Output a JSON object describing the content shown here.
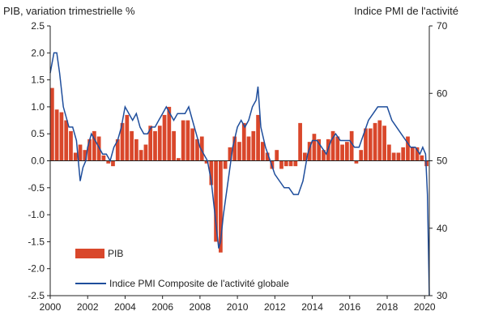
{
  "chart_data": {
    "type": "bar+line",
    "left_axis_title": "PIB, variation trimestrielle  %",
    "right_axis_title": "Indice PMI de l'activité",
    "x_ticks": [
      "2000",
      "2002",
      "2004",
      "2006",
      "2008",
      "2010",
      "2012",
      "2014",
      "2016",
      "2018",
      "2020"
    ],
    "left_ticks": [
      "2.5",
      "2.0",
      "1.5",
      "1.0",
      "0.5",
      "0.0",
      "-0.5",
      "-1.0",
      "-1.5",
      "-2.0",
      "-2.5"
    ],
    "right_ticks": [
      "70",
      "60",
      "50",
      "40",
      "30"
    ],
    "left_range": [
      -2.5,
      2.5
    ],
    "right_range": [
      30,
      70
    ],
    "x_range": [
      2000.0,
      2020.25
    ],
    "colors": {
      "bar": "#d9472b",
      "line": "#1f4e9c"
    },
    "series": [
      {
        "name": "PIB",
        "kind": "bar",
        "axis": "left",
        "x": [
          2000.0,
          2000.25,
          2000.5,
          2000.75,
          2001.0,
          2001.25,
          2001.5,
          2001.75,
          2002.0,
          2002.25,
          2002.5,
          2002.75,
          2003.0,
          2003.25,
          2003.5,
          2003.75,
          2004.0,
          2004.25,
          2004.5,
          2004.75,
          2005.0,
          2005.25,
          2005.5,
          2005.75,
          2006.0,
          2006.25,
          2006.5,
          2006.75,
          2007.0,
          2007.25,
          2007.5,
          2007.75,
          2008.0,
          2008.25,
          2008.5,
          2008.75,
          2009.0,
          2009.25,
          2009.5,
          2009.75,
          2010.0,
          2010.25,
          2010.5,
          2010.75,
          2011.0,
          2011.25,
          2011.5,
          2011.75,
          2012.0,
          2012.25,
          2012.5,
          2012.75,
          2013.0,
          2013.25,
          2013.5,
          2013.75,
          2014.0,
          2014.25,
          2014.5,
          2014.75,
          2015.0,
          2015.25,
          2015.5,
          2015.75,
          2016.0,
          2016.25,
          2016.5,
          2016.75,
          2017.0,
          2017.25,
          2017.5,
          2017.75,
          2018.0,
          2018.25,
          2018.5,
          2018.75,
          2019.0,
          2019.25,
          2019.5,
          2019.75,
          2020.0
        ],
        "values": [
          1.35,
          0.95,
          0.9,
          0.75,
          0.55,
          0.15,
          0.3,
          0.2,
          0.4,
          0.55,
          0.45,
          0.1,
          -0.05,
          -0.1,
          0.4,
          0.7,
          0.85,
          0.55,
          0.4,
          0.2,
          0.3,
          0.65,
          0.55,
          0.65,
          0.85,
          1.0,
          0.55,
          0.05,
          0.75,
          0.75,
          0.6,
          0.4,
          0.45,
          -0.05,
          -0.45,
          -1.5,
          -1.7,
          -0.15,
          0.25,
          0.45,
          0.35,
          0.7,
          0.45,
          0.55,
          0.85,
          0.35,
          0.15,
          -0.15,
          0.2,
          -0.15,
          -0.1,
          -0.1,
          -0.1,
          0.7,
          0.15,
          0.35,
          0.5,
          0.4,
          0.2,
          0.4,
          0.55,
          0.45,
          0.3,
          0.35,
          0.55,
          -0.05,
          0.2,
          0.6,
          0.6,
          0.7,
          0.75,
          0.65,
          0.3,
          0.15,
          0.15,
          0.25,
          0.45,
          0.25,
          0.25,
          0.1,
          -0.1
        ]
      },
      {
        "name": "Indice PMI Composite de l'activité globale",
        "kind": "line",
        "axis": "right",
        "x": [
          2000.0,
          2000.2,
          2000.35,
          2000.5,
          2000.7,
          2001.0,
          2001.2,
          2001.4,
          2001.6,
          2001.75,
          2001.9,
          2002.0,
          2002.2,
          2002.4,
          2002.6,
          2002.8,
          2003.0,
          2003.2,
          2003.4,
          2003.6,
          2003.8,
          2004.0,
          2004.2,
          2004.4,
          2004.6,
          2004.8,
          2005.0,
          2005.2,
          2005.4,
          2005.6,
          2005.8,
          2006.0,
          2006.2,
          2006.4,
          2006.6,
          2006.8,
          2007.0,
          2007.2,
          2007.4,
          2007.6,
          2007.8,
          2008.0,
          2008.2,
          2008.4,
          2008.6,
          2008.8,
          2009.0,
          2009.1,
          2009.25,
          2009.5,
          2009.75,
          2010.0,
          2010.2,
          2010.4,
          2010.6,
          2010.8,
          2011.0,
          2011.1,
          2011.25,
          2011.5,
          2011.75,
          2012.0,
          2012.25,
          2012.5,
          2012.75,
          2013.0,
          2013.25,
          2013.5,
          2013.75,
          2014.0,
          2014.25,
          2014.5,
          2014.75,
          2015.0,
          2015.25,
          2015.5,
          2015.75,
          2016.0,
          2016.25,
          2016.5,
          2016.75,
          2017.0,
          2017.25,
          2017.5,
          2017.75,
          2018.0,
          2018.25,
          2018.5,
          2018.75,
          2019.0,
          2019.25,
          2019.5,
          2019.75,
          2019.9,
          2020.05,
          2020.15,
          2020.25
        ],
        "values": [
          63,
          66,
          66,
          63,
          58,
          55,
          55,
          53,
          47,
          49,
          50,
          52,
          54,
          53,
          52,
          51,
          51,
          50,
          52,
          53,
          55,
          58,
          57,
          56,
          57,
          55,
          54,
          54,
          55,
          55,
          56,
          57,
          58,
          57,
          56,
          57,
          57,
          57,
          58,
          56,
          54,
          52,
          51,
          50,
          47,
          42,
          37,
          38,
          42,
          47,
          52,
          55,
          56,
          55,
          56,
          58,
          59,
          61,
          55,
          52,
          50,
          48,
          47,
          46,
          46,
          45,
          45,
          47,
          51,
          53,
          53,
          52,
          51,
          53,
          54,
          53,
          53,
          53,
          52,
          52,
          54,
          56,
          57,
          58,
          58,
          58,
          56,
          55,
          54,
          53,
          52,
          52,
          51,
          52,
          51,
          45,
          30
        ]
      }
    ]
  }
}
